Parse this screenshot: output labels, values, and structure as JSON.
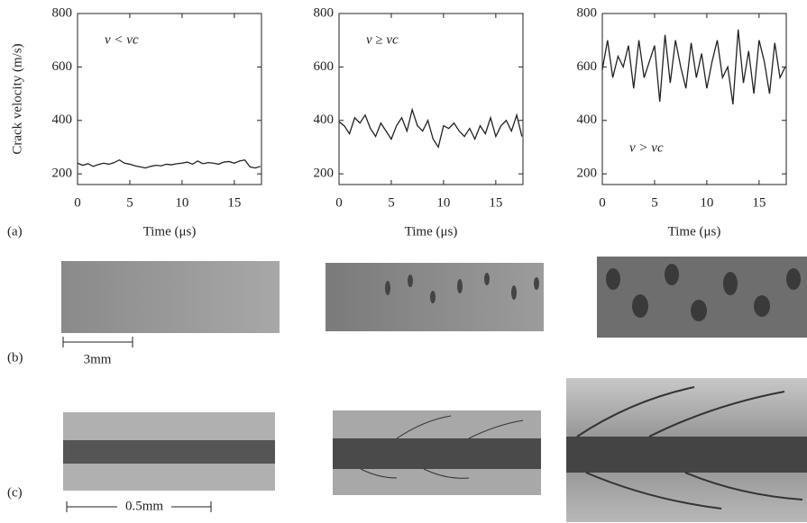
{
  "chart_data": [
    {
      "type": "line",
      "ylabel": "Crack velocity (m/s)",
      "xlabel": "Time (μs)",
      "annotation": "v < vc",
      "x": [
        0,
        0.5,
        1,
        1.5,
        2,
        2.5,
        3,
        3.5,
        4,
        4.5,
        5,
        5.5,
        6,
        6.5,
        7,
        7.5,
        8,
        8.5,
        9,
        9.5,
        10,
        10.5,
        11,
        11.5,
        12,
        12.5,
        13,
        13.5,
        14,
        14.5,
        15,
        15.5,
        16,
        16.5,
        17,
        17.5
      ],
      "color": "#222",
      "values": [
        240,
        232,
        238,
        228,
        235,
        240,
        236,
        242,
        252,
        240,
        236,
        230,
        226,
        222,
        228,
        232,
        230,
        236,
        234,
        238,
        240,
        244,
        236,
        248,
        238,
        242,
        240,
        236,
        244,
        246,
        240,
        248,
        252,
        226,
        222,
        228
      ],
      "xlim": [
        0,
        17.6
      ],
      "ylim": [
        160,
        800
      ],
      "xticks": [
        0,
        5,
        10,
        15
      ],
      "yticks": [
        200,
        400,
        600,
        800
      ]
    },
    {
      "type": "line",
      "xlabel": "Time (μs)",
      "annotation": "v ≥ vc",
      "x": [
        0,
        0.5,
        1,
        1.5,
        2,
        2.5,
        3,
        3.5,
        4,
        4.5,
        5,
        5.5,
        6,
        6.5,
        7,
        7.5,
        8,
        8.5,
        9,
        9.5,
        10,
        10.5,
        11,
        11.5,
        12,
        12.5,
        13,
        13.5,
        14,
        14.5,
        15,
        15.5,
        16,
        16.5,
        17,
        17.5
      ],
      "color": "#222",
      "values": [
        395,
        380,
        350,
        410,
        390,
        420,
        370,
        340,
        390,
        360,
        330,
        380,
        410,
        360,
        440,
        380,
        360,
        400,
        330,
        300,
        380,
        370,
        390,
        360,
        340,
        370,
        330,
        380,
        350,
        410,
        340,
        380,
        400,
        360,
        420,
        340
      ],
      "xlim": [
        0,
        17.6
      ],
      "ylim": [
        160,
        800
      ],
      "xticks": [
        0,
        5,
        10,
        15
      ],
      "yticks": [
        200,
        400,
        600,
        800
      ]
    },
    {
      "type": "line",
      "xlabel": "Time (μs)",
      "annotation": "v > vc",
      "x": [
        0,
        0.5,
        1,
        1.5,
        2,
        2.5,
        3,
        3.5,
        4,
        4.5,
        5,
        5.5,
        6,
        6.5,
        7,
        7.5,
        8,
        8.5,
        9,
        9.5,
        10,
        10.5,
        11,
        11.5,
        12,
        12.5,
        13,
        13.5,
        14,
        14.5,
        15,
        15.5,
        16,
        16.5,
        17,
        17.5
      ],
      "color": "#222",
      "values": [
        590,
        700,
        560,
        640,
        600,
        680,
        520,
        700,
        560,
        620,
        680,
        470,
        720,
        540,
        700,
        600,
        520,
        690,
        560,
        650,
        520,
        620,
        700,
        560,
        600,
        460,
        740,
        540,
        660,
        500,
        700,
        620,
        500,
        690,
        560,
        600
      ],
      "xlim": [
        0,
        17.6
      ],
      "ylim": [
        160,
        800
      ],
      "xticks": [
        0,
        5,
        10,
        15
      ],
      "yticks": [
        200,
        400,
        600,
        800
      ]
    }
  ],
  "panel_labels": [
    "(a)",
    "(b)",
    "(c)"
  ],
  "scale_bars": [
    "3mm",
    "0.5mm"
  ]
}
